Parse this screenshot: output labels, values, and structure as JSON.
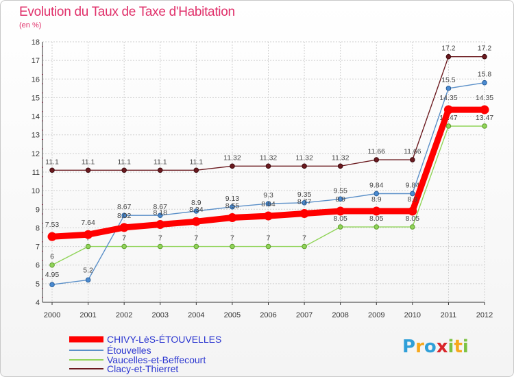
{
  "chart_data": {
    "type": "line",
    "title": "Evolution du Taux de Taxe d'Habitation",
    "subtitle": "(en %)",
    "xlabel": "",
    "ylabel": "",
    "ylim": [
      4,
      18
    ],
    "yticks": [
      4,
      5,
      6,
      7,
      8,
      9,
      10,
      11,
      12,
      13,
      14,
      15,
      16,
      17,
      18
    ],
    "x": [
      "2000",
      "2001",
      "2002",
      "2003",
      "2004",
      "2005",
      "2006",
      "2007",
      "2008",
      "2009",
      "2010",
      "2011",
      "2012"
    ],
    "series": [
      {
        "name": "Clacy-et-Thierret",
        "color": "#6b1a1f",
        "values": [
          11.1,
          11.1,
          11.1,
          11.1,
          11.1,
          11.32,
          11.32,
          11.32,
          11.32,
          11.66,
          11.66,
          17.2,
          17.2
        ],
        "labels": [
          "11.1",
          "11.1",
          "11.1",
          "11.1",
          "11.1",
          "11.32",
          "11.32",
          "11.32",
          "11.32",
          "11.66",
          "11.66",
          "17.2",
          "17.2"
        ]
      },
      {
        "name": "Vaucelles-et-Beffecourt",
        "color": "#90d458",
        "values": [
          6,
          7,
          7,
          7,
          7,
          7,
          7,
          7,
          8.05,
          8.05,
          8.05,
          13.47,
          13.47
        ],
        "labels": [
          "6",
          "7",
          "7",
          "7",
          "7",
          "7",
          "7",
          "7",
          "8.05",
          "8.05",
          "8.05",
          "13.47",
          "13.47"
        ]
      },
      {
        "name": "Étouvelles",
        "color": "#5a8fc8",
        "values": [
          4.95,
          5.2,
          8.67,
          8.67,
          8.9,
          9.13,
          9.3,
          9.35,
          9.55,
          9.84,
          9.84,
          15.5,
          15.8
        ],
        "labels": [
          "4.95",
          "5.2",
          "8.67",
          "8.67",
          "8.9",
          "9.13",
          "9.3",
          "9.35",
          "9.55",
          "9.84",
          "9.84",
          "15.5",
          "15.8"
        ]
      },
      {
        "name": "CHIVY-LèS-ÉTOUVELLES",
        "color": "#ff0000",
        "values": [
          7.53,
          7.64,
          8.02,
          8.18,
          8.34,
          8.55,
          8.64,
          8.77,
          8.9,
          8.9,
          8.9,
          14.35,
          14.35
        ],
        "labels": [
          "7.53",
          "7.64",
          "8.02",
          "8.18",
          "8.34",
          "8.55",
          "8.64",
          "8.77",
          "8.9",
          "8.9",
          "8.9",
          "14.35",
          "14.35"
        ]
      }
    ],
    "legend": [
      "CHIVY-LèS-ÉTOUVELLES",
      "Étouvelles",
      "Vaucelles-et-Beffecourt",
      "Clacy-et-Thierret"
    ],
    "legend_position": "bottom-left"
  },
  "logo": {
    "text": "Proxiti",
    "letters": [
      "P",
      "r",
      "o",
      "x",
      "i",
      "t",
      "i"
    ],
    "colors": [
      "#2f9fd8",
      "#f7a81b",
      "#2f9fd8",
      "#d9262b",
      "#7cc242",
      "#f7a81b",
      "#7cc242"
    ]
  }
}
